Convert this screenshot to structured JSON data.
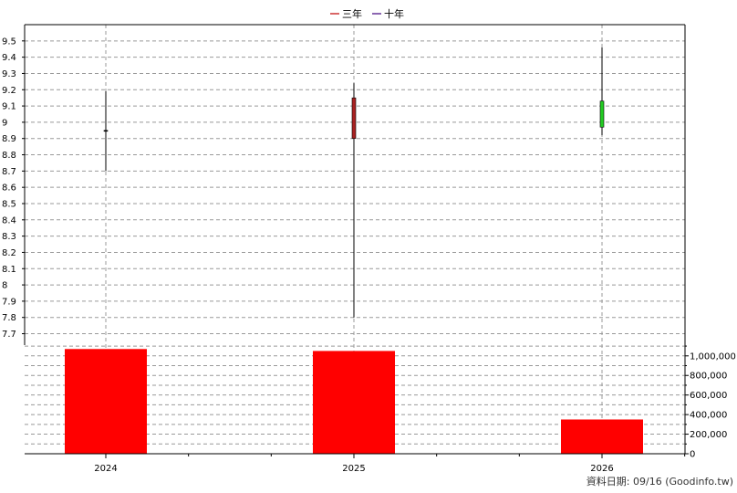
{
  "legend": [
    {
      "label": "三年",
      "color": "#cc3333"
    },
    {
      "label": "十年",
      "color": "#663399"
    }
  ],
  "footer": "資料日期: 09/16  (Goodinfo.tw)",
  "chart_data": [
    {
      "type": "candlestick",
      "x_categories": [
        "2024",
        "2025",
        "2026"
      ],
      "ylim": [
        7.63,
        9.6
      ],
      "y_ticks": [
        "7.7",
        "7.8",
        "7.9",
        "8",
        "8.1",
        "8.2",
        "8.3",
        "8.4",
        "8.5",
        "8.6",
        "8.7",
        "8.8",
        "8.9",
        "9",
        "9.1",
        "9.2",
        "9.3",
        "9.4",
        "9.5"
      ],
      "grid": true,
      "candles": [
        {
          "x": "2024",
          "open": 8.95,
          "close": 8.95,
          "high": 9.19,
          "low": 8.7,
          "color": "#000000"
        },
        {
          "x": "2025",
          "open": 8.9,
          "close": 9.15,
          "high": 9.24,
          "low": 7.8,
          "color": "#aa2222"
        },
        {
          "x": "2026",
          "open": 9.13,
          "close": 8.97,
          "high": 9.46,
          "low": 8.92,
          "color": "#22cc22"
        }
      ]
    },
    {
      "type": "bar",
      "categories": [
        "2024",
        "2025",
        "2026"
      ],
      "values": [
        1070000,
        1050000,
        350000
      ],
      "color": "#ff0000",
      "ylim": [
        0,
        1110000
      ],
      "y_ticks": [
        "0",
        "200,000",
        "400,000",
        "600,000",
        "800,000",
        "1,000,000"
      ],
      "grid": true
    }
  ]
}
